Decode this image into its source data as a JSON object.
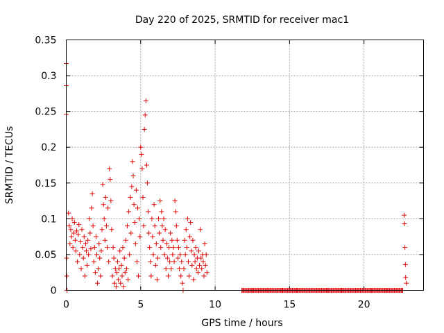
{
  "chart_data": {
    "type": "scatter",
    "title": "Day 220 of 2025, SRMTID for receiver mac1",
    "xlabel": "GPS time / hours",
    "ylabel": "SRMTID / TECUs",
    "xlim": [
      0,
      24
    ],
    "ylim": [
      0,
      0.35
    ],
    "xticks": [
      0,
      5,
      10,
      15,
      20
    ],
    "xtick_labels": [
      "0",
      "5",
      "10",
      "15",
      "20"
    ],
    "yticks": [
      0,
      0.05,
      0.1,
      0.15,
      0.2,
      0.25,
      0.3,
      0.35
    ],
    "ytick_labels": [
      "0",
      "0.05",
      "0.1",
      "0.15",
      "0.2",
      "0.25",
      "0.3",
      "0.35"
    ],
    "grid": true,
    "marker": "+",
    "color": "#e00000",
    "series": [
      {
        "name": "mac1",
        "points": [
          [
            0.0,
            0.317
          ],
          [
            0.0,
            0.286
          ],
          [
            0.0,
            0.246
          ],
          [
            0.02,
            0.045
          ],
          [
            0.03,
            0.02
          ],
          [
            0.05,
            0.0
          ],
          [
            0.15,
            0.108
          ],
          [
            0.2,
            0.09
          ],
          [
            0.25,
            0.065
          ],
          [
            0.3,
            0.085
          ],
          [
            0.35,
            0.075
          ],
          [
            0.4,
            0.1
          ],
          [
            0.45,
            0.06
          ],
          [
            0.5,
            0.08
          ],
          [
            0.55,
            0.095
          ],
          [
            0.6,
            0.07
          ],
          [
            0.65,
            0.055
          ],
          [
            0.7,
            0.083
          ],
          [
            0.75,
            0.04
          ],
          [
            0.8,
            0.078
          ],
          [
            0.85,
            0.092
          ],
          [
            0.9,
            0.05
          ],
          [
            0.95,
            0.068
          ],
          [
            1.0,
            0.03
          ],
          [
            1.05,
            0.085
          ],
          [
            1.1,
            0.06
          ],
          [
            1.15,
            0.045
          ],
          [
            1.2,
            0.075
          ],
          [
            1.25,
            0.02
          ],
          [
            1.3,
            0.065
          ],
          [
            1.35,
            0.055
          ],
          [
            1.4,
            0.035
          ],
          [
            1.45,
            0.07
          ],
          [
            1.5,
            0.05
          ],
          [
            1.55,
            0.1
          ],
          [
            1.6,
            0.08
          ],
          [
            1.65,
            0.058
          ],
          [
            1.7,
            0.115
          ],
          [
            1.75,
            0.135
          ],
          [
            1.8,
            0.09
          ],
          [
            1.85,
            0.04
          ],
          [
            1.9,
            0.06
          ],
          [
            1.95,
            0.025
          ],
          [
            2.0,
            0.075
          ],
          [
            2.05,
            0.05
          ],
          [
            2.1,
            0.01
          ],
          [
            2.15,
            0.03
          ],
          [
            2.2,
            0.065
          ],
          [
            2.25,
            0.045
          ],
          [
            2.3,
            0.02
          ],
          [
            2.35,
            0.055
          ],
          [
            2.4,
            0.085
          ],
          [
            2.45,
            0.148
          ],
          [
            2.5,
            0.12
          ],
          [
            2.55,
            0.1
          ],
          [
            2.6,
            0.07
          ],
          [
            2.65,
            0.13
          ],
          [
            2.7,
            0.09
          ],
          [
            2.75,
            0.06
          ],
          [
            2.8,
            0.115
          ],
          [
            2.85,
            0.04
          ],
          [
            2.9,
            0.17
          ],
          [
            2.95,
            0.155
          ],
          [
            3.0,
            0.125
          ],
          [
            3.05,
            0.085
          ],
          [
            3.1,
            0.02
          ],
          [
            3.15,
            0.06
          ],
          [
            3.2,
            0.045
          ],
          [
            3.25,
            0.01
          ],
          [
            3.3,
            0.03
          ],
          [
            3.35,
            0.005
          ],
          [
            3.4,
            0.025
          ],
          [
            3.45,
            0.04
          ],
          [
            3.5,
            0.015
          ],
          [
            3.55,
            0.03
          ],
          [
            3.6,
            0.055
          ],
          [
            3.65,
            0.01
          ],
          [
            3.7,
            0.035
          ],
          [
            3.75,
            0.02
          ],
          [
            3.8,
            0.06
          ],
          [
            3.85,
            0.005
          ],
          [
            3.9,
            0.045
          ],
          [
            3.95,
            0.025
          ],
          [
            4.0,
            0.07
          ],
          [
            4.05,
            0.03
          ],
          [
            4.1,
            0.09
          ],
          [
            4.15,
            0.015
          ],
          [
            4.2,
            0.11
          ],
          [
            4.25,
            0.05
          ],
          [
            4.3,
            0.13
          ],
          [
            4.35,
            0.08
          ],
          [
            4.4,
            0.145
          ],
          [
            4.45,
            0.18
          ],
          [
            4.5,
            0.16
          ],
          [
            4.55,
            0.12
          ],
          [
            4.6,
            0.095
          ],
          [
            4.65,
            0.065
          ],
          [
            4.7,
            0.14
          ],
          [
            4.75,
            0.04
          ],
          [
            4.8,
            0.115
          ],
          [
            4.85,
            0.02
          ],
          [
            4.9,
            0.1
          ],
          [
            4.95,
            0.075
          ],
          [
            5.0,
            0.2
          ],
          [
            5.05,
            0.19
          ],
          [
            5.1,
            0.17
          ],
          [
            5.15,
            0.13
          ],
          [
            5.2,
            0.09
          ],
          [
            5.25,
            0.225
          ],
          [
            5.3,
            0.245
          ],
          [
            5.35,
            0.265
          ],
          [
            5.4,
            0.175
          ],
          [
            5.45,
            0.15
          ],
          [
            5.5,
            0.11
          ],
          [
            5.55,
            0.08
          ],
          [
            5.6,
            0.06
          ],
          [
            5.65,
            0.04
          ],
          [
            5.7,
            0.02
          ],
          [
            5.75,
            0.1
          ],
          [
            5.8,
            0.075
          ],
          [
            5.85,
            0.05
          ],
          [
            5.9,
            0.12
          ],
          [
            5.95,
            0.09
          ],
          [
            6.0,
            0.035
          ],
          [
            6.05,
            0.065
          ],
          [
            6.1,
            0.015
          ],
          [
            6.15,
            0.045
          ],
          [
            6.2,
            0.1
          ],
          [
            6.25,
            0.08
          ],
          [
            6.3,
            0.125
          ],
          [
            6.35,
            0.06
          ],
          [
            6.4,
            0.11
          ],
          [
            6.45,
            0.09
          ],
          [
            6.5,
            0.07
          ],
          [
            6.55,
            0.1
          ],
          [
            6.6,
            0.05
          ],
          [
            6.65,
            0.085
          ],
          [
            6.7,
            0.03
          ],
          [
            6.75,
            0.065
          ],
          [
            6.8,
            0.045
          ],
          [
            6.85,
            0.02
          ],
          [
            6.9,
            0.06
          ],
          [
            6.95,
            0.04
          ],
          [
            7.0,
            0.08
          ],
          [
            7.05,
            0.03
          ],
          [
            7.1,
            0.07
          ],
          [
            7.15,
            0.05
          ],
          [
            7.2,
            0.06
          ],
          [
            7.25,
            0.04
          ],
          [
            7.3,
            0.125
          ],
          [
            7.35,
            0.11
          ],
          [
            7.4,
            0.09
          ],
          [
            7.45,
            0.07
          ],
          [
            7.5,
            0.045
          ],
          [
            7.55,
            0.06
          ],
          [
            7.6,
            0.03
          ],
          [
            7.65,
            0.05
          ],
          [
            7.7,
            0.02
          ],
          [
            7.75,
            0.04
          ],
          [
            7.8,
            0.01
          ],
          [
            7.85,
            0.0
          ],
          [
            7.9,
            0.03
          ],
          [
            7.95,
            0.07
          ],
          [
            8.0,
            0.05
          ],
          [
            8.05,
            0.085
          ],
          [
            8.1,
            0.06
          ],
          [
            8.15,
            0.1
          ],
          [
            8.2,
            0.04
          ],
          [
            8.25,
            0.02
          ],
          [
            8.3,
            0.075
          ],
          [
            8.35,
            0.095
          ],
          [
            8.4,
            0.055
          ],
          [
            8.45,
            0.035
          ],
          [
            8.5,
            0.07
          ],
          [
            8.55,
            0.015
          ],
          [
            8.6,
            0.05
          ],
          [
            8.65,
            0.04
          ],
          [
            8.7,
            0.06
          ],
          [
            8.75,
            0.03
          ],
          [
            8.8,
            0.045
          ],
          [
            8.85,
            0.025
          ],
          [
            8.9,
            0.055
          ],
          [
            8.95,
            0.035
          ],
          [
            9.0,
            0.085
          ],
          [
            9.05,
            0.045
          ],
          [
            9.1,
            0.03
          ],
          [
            9.15,
            0.05
          ],
          [
            9.2,
            0.04
          ],
          [
            9.25,
            0.02
          ],
          [
            9.3,
            0.065
          ],
          [
            9.35,
            0.035
          ],
          [
            9.4,
            0.05
          ],
          [
            9.45,
            0.025
          ],
          [
            11.8,
            0.0
          ],
          [
            12.5,
            0.0
          ],
          [
            13.5,
            0.0
          ],
          [
            14.5,
            0.0
          ],
          [
            15.5,
            0.0
          ],
          [
            16.5,
            0.0
          ],
          [
            17.5,
            0.0
          ],
          [
            18.5,
            0.0
          ],
          [
            19.5,
            0.0
          ],
          [
            20.5,
            0.0
          ],
          [
            21.5,
            0.0
          ],
          [
            22.6,
            0.0
          ],
          [
            22.7,
            0.105
          ],
          [
            22.72,
            0.093
          ],
          [
            22.75,
            0.06
          ],
          [
            22.78,
            0.036
          ],
          [
            22.8,
            0.018
          ],
          [
            22.85,
            0.01
          ]
        ]
      }
    ]
  }
}
